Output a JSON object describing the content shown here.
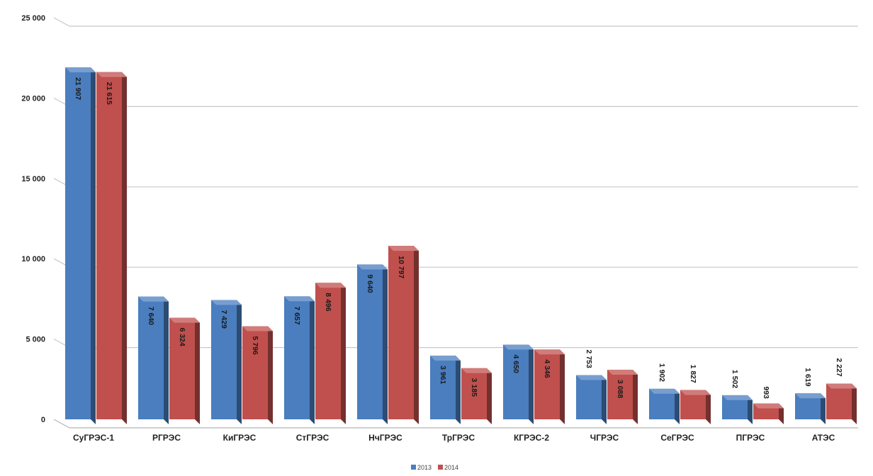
{
  "chart_data": {
    "type": "bar",
    "categories": [
      "СуГРЭС-1",
      "РГРЭС",
      "КиГРЭС",
      "СтГРЭС",
      "НчГРЭС",
      "ТрГРЭС",
      "КГРЭС-2",
      "ЧГРЭС",
      "СеГРЭС",
      "ПГРЭС",
      "АТЭС"
    ],
    "series": [
      {
        "name": "2013",
        "color": "#4a7ebf",
        "values": [
          21907,
          7640,
          7429,
          7657,
          9640,
          3961,
          4650,
          2753,
          1902,
          1502,
          1619
        ],
        "labels": [
          "21 907",
          "7 640",
          "7 429",
          "7 657",
          "9 640",
          "3 961",
          "4 650",
          "2 753",
          "1 902",
          "1 502",
          "1 619"
        ]
      },
      {
        "name": "2014",
        "color": "#c0504d",
        "values": [
          21615,
          6324,
          5796,
          8496,
          10797,
          3185,
          4346,
          3088,
          1827,
          993,
          2227
        ],
        "labels": [
          "21 615",
          "6 324",
          "5 796",
          "8 496",
          "10 797",
          "3 185",
          "4 346",
          "3 088",
          "1 827",
          "993",
          "2 227"
        ]
      }
    ],
    "ylim": [
      0,
      25000
    ],
    "yticks": [
      0,
      5000,
      10000,
      15000,
      20000,
      25000
    ],
    "ytick_labels": [
      "0",
      "5 000",
      "10 000",
      "15 000",
      "20 000",
      "25 000"
    ],
    "grid": true,
    "legend_position": "bottom-center",
    "title": "",
    "xlabel": "",
    "ylabel": ""
  }
}
